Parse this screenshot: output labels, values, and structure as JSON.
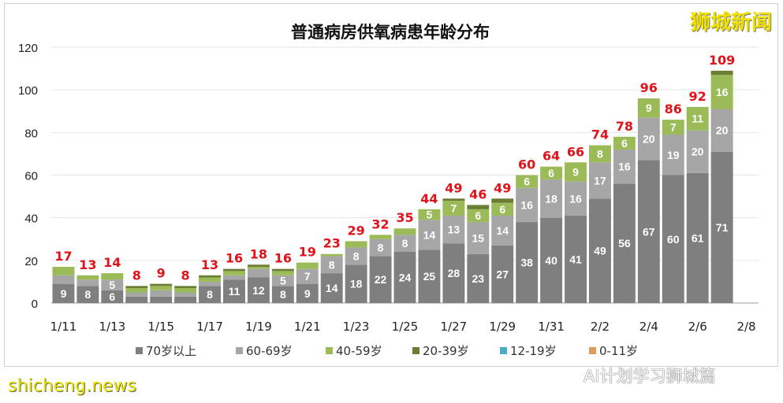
{
  "watermarks": {
    "top_right": "狮城新闻",
    "bottom_left": "shicheng.news",
    "bottom_right": "AI计划学习狮城篇"
  },
  "chart_data": {
    "type": "bar",
    "stacked": true,
    "title": "普通病房供氧病患年龄分布",
    "xlabel": "",
    "ylabel": "",
    "ylim": [
      0,
      120
    ],
    "yticks": [
      0,
      20,
      40,
      60,
      80,
      100,
      120
    ],
    "grid": true,
    "legend_position": "bottom",
    "categories": [
      "1/11",
      "1/12",
      "1/13",
      "1/14",
      "1/15",
      "1/16",
      "1/17",
      "1/18",
      "1/19",
      "1/20",
      "1/21",
      "1/22",
      "1/23",
      "1/24",
      "1/25",
      "1/26",
      "1/27",
      "1/28",
      "1/29",
      "1/30",
      "1/31",
      "2/1",
      "2/2",
      "2/3",
      "2/4",
      "2/5",
      "2/6",
      "2/7",
      "2/8"
    ],
    "xtick_labels": [
      "1/11",
      "1/13",
      "1/15",
      "1/17",
      "1/19",
      "1/21",
      "1/23",
      "1/25",
      "1/27",
      "1/29",
      "1/31",
      "2/2",
      "2/4",
      "2/6",
      "2/8"
    ],
    "series": [
      {
        "name": "70岁以上",
        "color": "#7f7f7f",
        "values": [
          9,
          8,
          6,
          3,
          3,
          3,
          8,
          11,
          12,
          8,
          9,
          14,
          18,
          22,
          24,
          25,
          28,
          23,
          27,
          38,
          40,
          41,
          49,
          56,
          67,
          60,
          61,
          71,
          null
        ]
      },
      {
        "name": "60-69岁",
        "color": "#a6a6a6",
        "values": [
          4,
          3,
          5,
          2,
          3,
          2,
          2,
          2,
          4,
          5,
          7,
          8,
          8,
          8,
          8,
          14,
          13,
          15,
          14,
          16,
          18,
          16,
          17,
          16,
          20,
          19,
          20,
          20,
          null
        ]
      },
      {
        "name": "40-59岁",
        "color": "#9bbb59",
        "values": [
          4,
          2,
          3,
          2,
          2,
          2,
          2,
          2,
          1,
          2,
          3,
          1,
          3,
          2,
          3,
          5,
          7,
          6,
          6,
          6,
          6,
          9,
          8,
          6,
          9,
          7,
          11,
          16,
          null
        ]
      },
      {
        "name": "20-39岁",
        "color": "#6b7d32",
        "values": [
          0,
          0,
          0,
          1,
          1,
          1,
          1,
          1,
          1,
          1,
          0,
          0,
          0,
          0,
          0,
          0,
          1,
          2,
          2,
          0,
          0,
          0,
          0,
          0,
          0,
          0,
          0,
          2,
          null
        ]
      },
      {
        "name": "12-19岁",
        "color": "#4bacc6",
        "values": [
          0,
          0,
          0,
          0,
          0,
          0,
          0,
          0,
          0,
          0,
          0,
          0,
          0,
          0,
          0,
          0,
          0,
          0,
          0,
          0,
          0,
          0,
          0,
          0,
          0,
          0,
          0,
          0,
          null
        ]
      },
      {
        "name": "0-11岁",
        "color": "#e09a5c",
        "values": [
          0,
          0,
          0,
          0,
          0,
          0,
          0,
          0,
          0,
          0,
          0,
          0,
          0,
          0,
          0,
          0,
          0,
          0,
          0,
          0,
          0,
          0,
          0,
          0,
          0,
          0,
          0,
          0,
          null
        ]
      }
    ],
    "totals": [
      17,
      13,
      14,
      8,
      9,
      8,
      13,
      16,
      18,
      16,
      19,
      23,
      29,
      32,
      35,
      44,
      49,
      46,
      49,
      60,
      64,
      66,
      74,
      78,
      96,
      86,
      92,
      109,
      null
    ],
    "total_label_color": "#e0131a"
  }
}
